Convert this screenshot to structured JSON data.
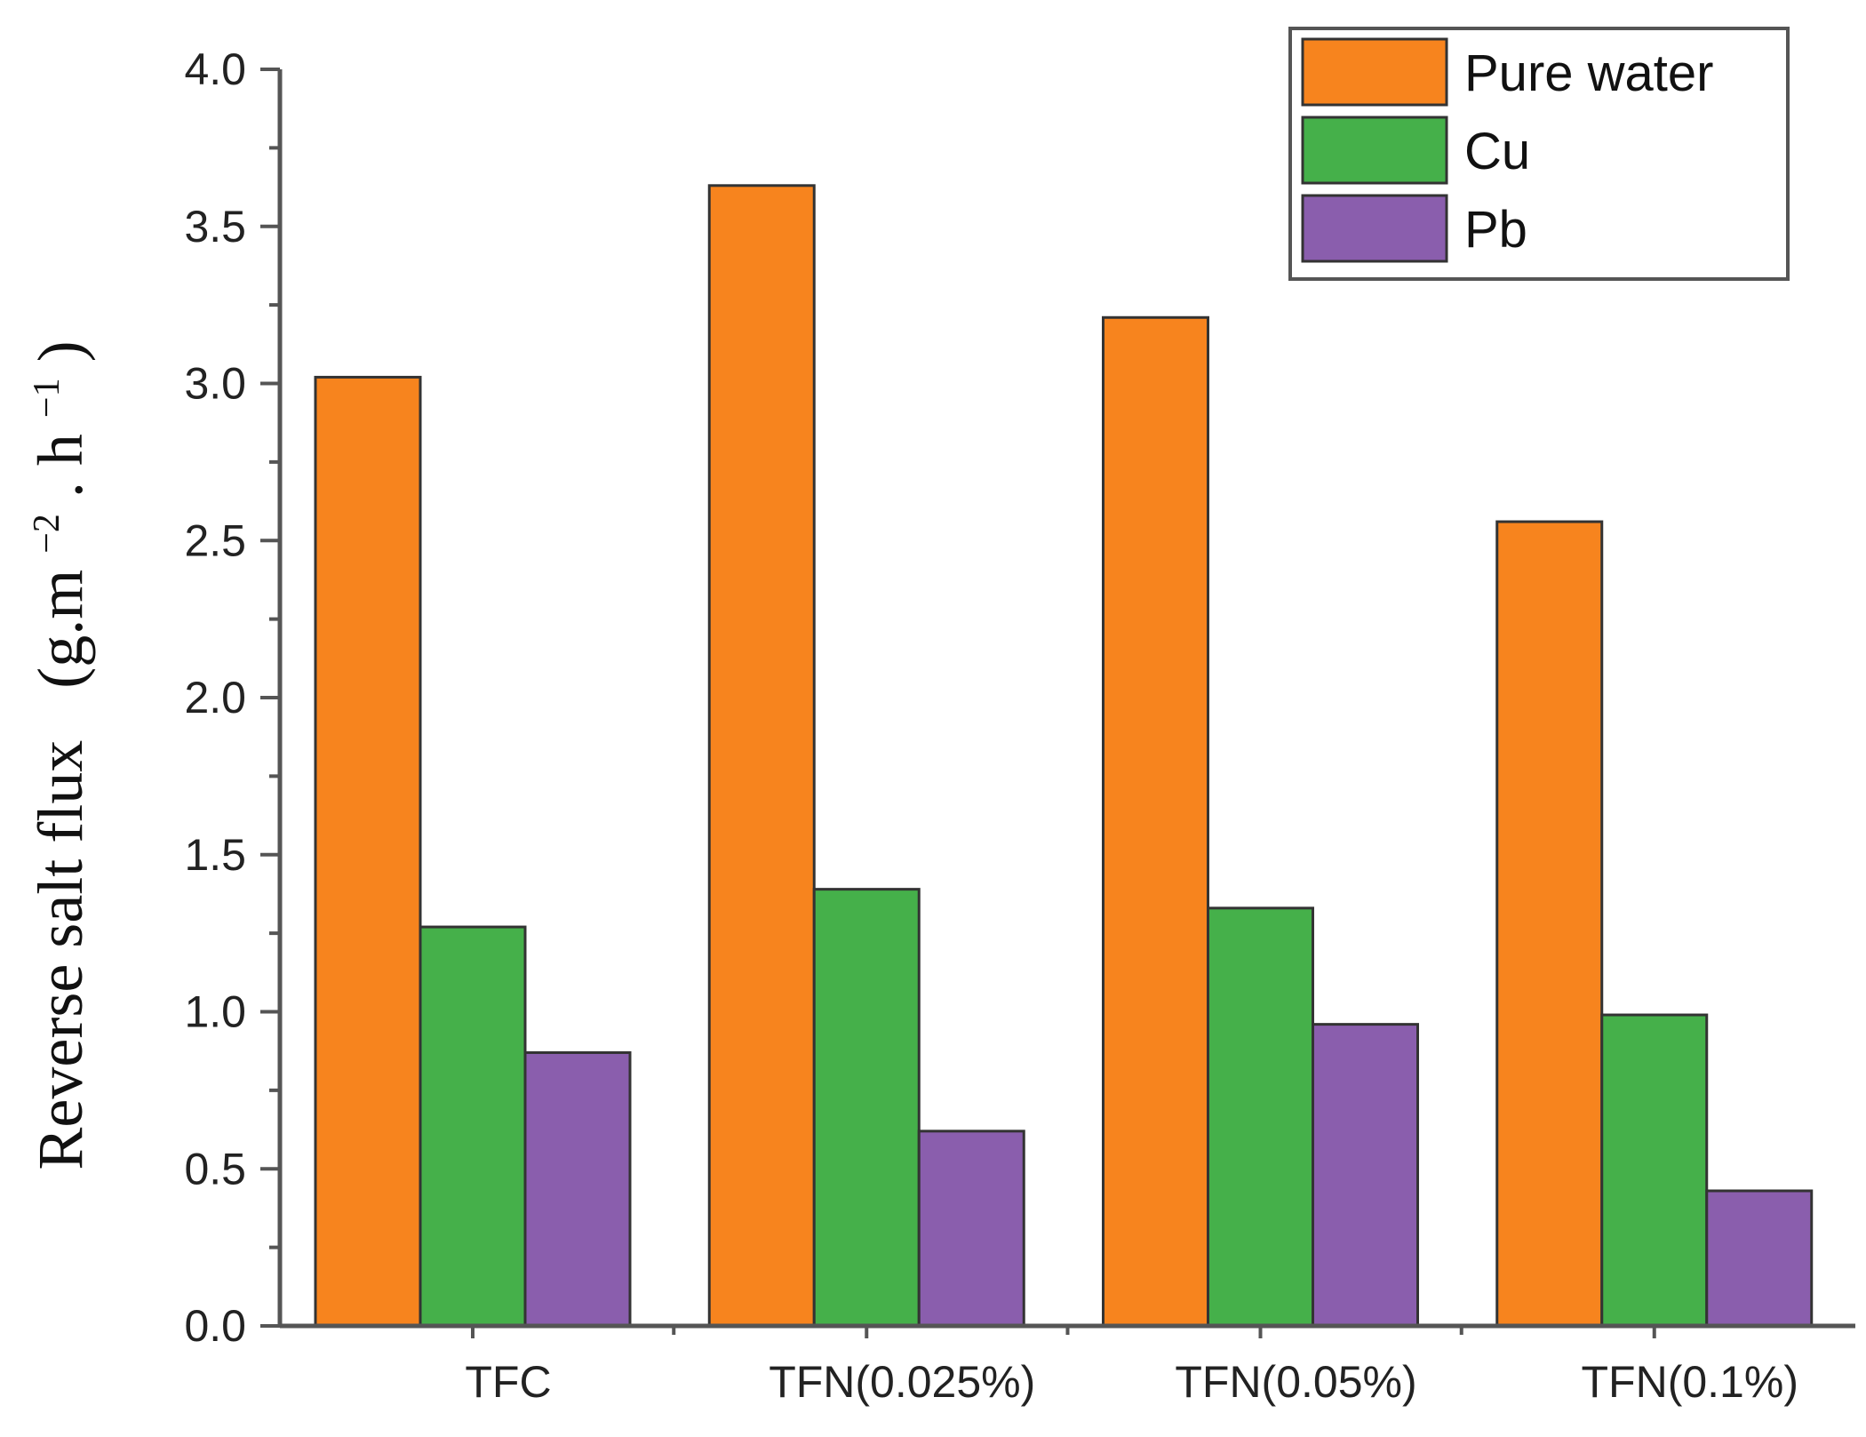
{
  "chart_data": {
    "type": "bar",
    "title": "",
    "xlabel": "",
    "ylabel": {
      "text": "Reverse salt flux",
      "units_parts": [
        "(g.m",
        "−2",
        ". h",
        "−1",
        ")"
      ]
    },
    "ylim": [
      0,
      4.0
    ],
    "yticks": [
      "0.0",
      "0.5",
      "1.0",
      "1.5",
      "2.0",
      "2.5",
      "3.0",
      "3.5",
      "4.0"
    ],
    "categories": [
      "TFC",
      "TFN(0.025%)",
      "TFN(0.05%)",
      "TFN(0.1%)"
    ],
    "series": [
      {
        "name": "Pure water",
        "color": "#F7841E",
        "values": [
          3.02,
          3.63,
          3.21,
          2.56
        ]
      },
      {
        "name": "Cu",
        "color": "#45B04A",
        "values": [
          1.27,
          1.39,
          1.33,
          0.99
        ]
      },
      {
        "name": "Pb",
        "color": "#8A5EAD",
        "values": [
          0.87,
          0.62,
          0.96,
          0.43
        ]
      }
    ],
    "legend": {
      "position": "top-right"
    }
  }
}
